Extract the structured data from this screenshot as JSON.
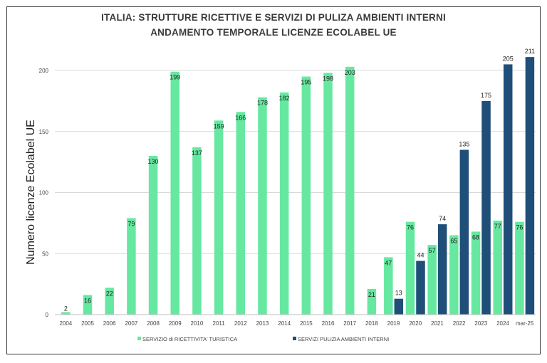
{
  "chart_data": {
    "type": "bar",
    "title": "ITALIA:  STRUTTURE RICETTIVE E SERVIZI DI PULIZA AMBIENTI INTERNI",
    "subtitle": "ANDAMENTO TEMPORALE LICENZE ECOLABEL UE",
    "xlabel": "",
    "ylabel": "Numero licenze Ecolabel UE",
    "ylim": [
      0,
      200
    ],
    "yticks": [
      0,
      50,
      100,
      150,
      200
    ],
    "grid": true,
    "legend_position": "bottom",
    "categories": [
      "2004",
      "2005",
      "2006",
      "2007",
      "2008",
      "2009",
      "2010",
      "2011",
      "2012",
      "2013",
      "2014",
      "2015",
      "2016",
      "2017",
      "2018",
      "2019",
      "2020",
      "2021",
      "2022",
      "2023",
      "2024",
      "mar-25"
    ],
    "series": [
      {
        "name": "SERVIZIO di RICETTIVITA' TURISTICA",
        "color": "#66e8a0",
        "values": [
          2,
          16,
          22,
          79,
          130,
          199,
          137,
          159,
          166,
          178,
          182,
          195,
          198,
          203,
          21,
          47,
          76,
          57,
          65,
          68,
          77,
          76
        ]
      },
      {
        "name": "SERVIZI PULIZIA AMBIENTI INTERNI",
        "color": "#1f4e79",
        "values": [
          null,
          null,
          null,
          null,
          null,
          null,
          null,
          null,
          null,
          null,
          null,
          null,
          null,
          null,
          null,
          13,
          44,
          74,
          135,
          175,
          205,
          211
        ]
      }
    ]
  }
}
